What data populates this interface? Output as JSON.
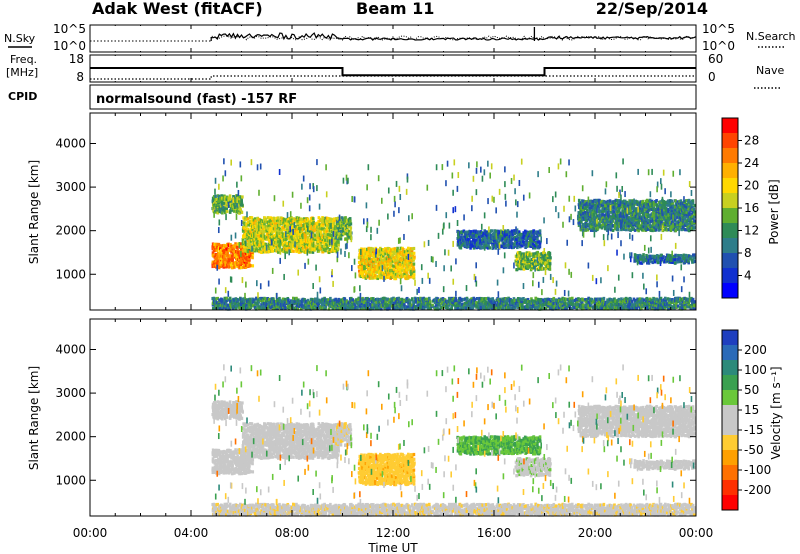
{
  "header": {
    "station": "Adak West (fitACF)",
    "beam": "Beam 11",
    "date": "22/Sep/2014"
  },
  "left_labels": {
    "nsky": "N.Sky",
    "freq_line1": "Freq.",
    "freq_line2": "[MHz]",
    "cpid": "CPID"
  },
  "right_labels": {
    "nsearch": "N.Search",
    "nave": "Nave"
  },
  "cpid_text": "normalsound (fast) -157 RF",
  "noise_axis": {
    "left_top": "10^5",
    "left_bottom": "10^0",
    "right_top": "10^5",
    "right_bottom": "10^0"
  },
  "freq_axis": {
    "left_ticks": [
      "18",
      "8"
    ],
    "right_ticks": [
      "60",
      "0"
    ]
  },
  "power_colorbar": {
    "label": "Power [dB]",
    "ticks": [
      "28",
      "24",
      "20",
      "16",
      "12",
      "8",
      "4"
    ],
    "colors": [
      "#ff0000",
      "#ff4400",
      "#ff7a00",
      "#ffb000",
      "#ffd800",
      "#c8d020",
      "#5fae30",
      "#2e8b57",
      "#2e7d8a",
      "#2050b0",
      "#1030d0",
      "#0000ff"
    ]
  },
  "velocity_colorbar": {
    "label": "Velocity [m s⁻¹]",
    "ticks": [
      "200",
      "100",
      "50",
      "15",
      "-15",
      "-50",
      "-100",
      "-200"
    ],
    "colors": [
      "#1f3fbf",
      "#2a6ab8",
      "#2c8a7a",
      "#3aa050",
      "#6ac83a",
      "#c8c8c8",
      "#c8c8c8",
      "#ffcc33",
      "#ffa000",
      "#ff7000",
      "#ff3000",
      "#ff0000"
    ]
  },
  "time_axis": {
    "label": "Time UT",
    "ticks": [
      "00:00",
      "04:00",
      "08:00",
      "12:00",
      "16:00",
      "20:00",
      "00:00"
    ]
  },
  "chart_data": {
    "type": "heatmap",
    "title": "Adak West (fitACF)   Beam 11   22/Sep/2014",
    "x_label": "Time UT",
    "x_range_hours": [
      0,
      24
    ],
    "y_label": "Slant Range [km]",
    "y_ticks": [
      1000,
      2000,
      3000,
      4000
    ],
    "y_range_km": [
      180,
      4700
    ],
    "panels": [
      {
        "name": "power",
        "unit": "dB",
        "range": [
          0,
          32
        ]
      },
      {
        "name": "velocity",
        "unit": "m/s",
        "range": [
          -250,
          250
        ]
      }
    ],
    "frequency_mhz_steps": [
      {
        "from_h": 0,
        "to_h": 10,
        "value": 13.2
      },
      {
        "from_h": 10,
        "to_h": 18,
        "value": 10.5
      },
      {
        "from_h": 18,
        "to_h": 24,
        "value": 13.2
      }
    ],
    "data_start_hour": 4.8,
    "echo_regions": [
      {
        "t0": 4.8,
        "t1": 6.4,
        "r0": 1150,
        "r1": 1700,
        "power": 26,
        "velocity": -5
      },
      {
        "t0": 6.0,
        "t1": 9.8,
        "r0": 1500,
        "r1": 2300,
        "power": 18,
        "velocity": -20
      },
      {
        "t0": 4.8,
        "t1": 6.0,
        "r0": 2400,
        "r1": 2800,
        "power": 14,
        "velocity": 0
      },
      {
        "t0": 9.7,
        "t1": 10.3,
        "r0": 1800,
        "r1": 2300,
        "power": 14,
        "velocity": -30
      },
      {
        "t0": 10.6,
        "t1": 12.8,
        "r0": 900,
        "r1": 1600,
        "power": 20,
        "velocity": -70
      },
      {
        "t0": 14.5,
        "t1": 17.8,
        "r0": 1600,
        "r1": 2000,
        "power": 7,
        "velocity": 90
      },
      {
        "t0": 16.8,
        "t1": 18.2,
        "r0": 1100,
        "r1": 1500,
        "power": 15,
        "velocity": 30
      },
      {
        "t0": 19.3,
        "t1": 23.9,
        "r0": 2000,
        "r1": 2700,
        "power": 10,
        "velocity": 0
      },
      {
        "t0": 21.5,
        "t1": 23.9,
        "r0": 1250,
        "r1": 1450,
        "power": 8,
        "velocity": 0
      },
      {
        "t0": 4.8,
        "t1": 23.9,
        "r0": 200,
        "r1": 450,
        "power": 10,
        "velocity": -30
      }
    ]
  }
}
